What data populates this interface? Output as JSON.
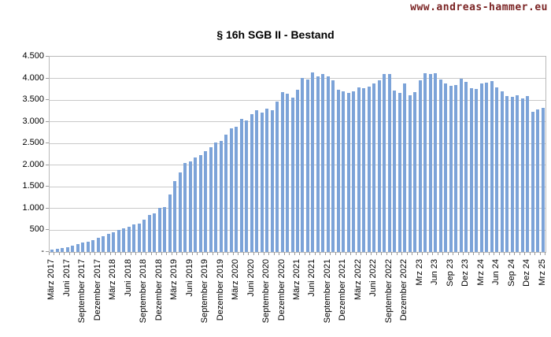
{
  "watermark": {
    "text": "www.andreas-hammer.eu",
    "color": "#7b2424"
  },
  "chart_data": {
    "type": "bar",
    "title": "§ 16h SGB II - Bestand",
    "xlabel": "",
    "ylabel": "",
    "ylim": [
      0,
      4500
    ],
    "y_step": 500,
    "grid": true,
    "legend": "none",
    "bar_color": "#7ca3d8",
    "gridline_color": "#c9c9c9",
    "y_tick_labels_top_to_bottom": [
      "4.500",
      "4.000",
      "3.500",
      "3.000",
      "2.500",
      "2.000",
      "1.500",
      "1.000",
      "500",
      "-"
    ],
    "x_tick_labels": [
      "März 2017",
      "Juni 2017",
      "September 2017",
      "Dezember 2017",
      "März 2018",
      "Juni 2018",
      "September 2018",
      "Dezember 2018",
      "März 2019",
      "Juni 2019",
      "September 2019",
      "Dezember 2019",
      "März 2020",
      "Juni 2020",
      "September 2020",
      "Dezember 2020",
      "März 2021",
      "Juni 2021",
      "September 2021",
      "Dezember 2021",
      "März 2022",
      "Juni 2022",
      "September 2022",
      "Dezember 2022",
      "Mrz 23",
      "Jun 23",
      "Sep 23",
      "Dez 23",
      "Mrz 24",
      "Jun 24",
      "Sep 24",
      "Dez 24",
      "Mrz 25"
    ],
    "bars_per_tick": 3,
    "n_bars": 97,
    "series_note": "monthly values März 2017 bis März 2025",
    "values": [
      60,
      80,
      95,
      110,
      140,
      175,
      210,
      240,
      280,
      330,
      370,
      415,
      460,
      505,
      550,
      590,
      630,
      660,
      740,
      860,
      890,
      1010,
      1040,
      1330,
      1640,
      1840,
      2050,
      2090,
      2180,
      2230,
      2320,
      2410,
      2530,
      2550,
      2700,
      2850,
      2880,
      3070,
      3030,
      3180,
      3270,
      3220,
      3300,
      3260,
      3470,
      3680,
      3650,
      3560,
      3730,
      4010,
      3980,
      4130,
      4040,
      4100,
      4040,
      3950,
      3740,
      3700,
      3670,
      3710,
      3800,
      3770,
      3810,
      3880,
      3950,
      4110,
      4100,
      3720,
      3660,
      3880,
      3620,
      3680,
      3950,
      4120,
      4100,
      4120,
      3980,
      3890,
      3820,
      3840,
      4000,
      3920,
      3770,
      3760,
      3880,
      3910,
      3940,
      3800,
      3710,
      3600,
      3575,
      3615,
      3545,
      3585,
      3230,
      3280,
      3320
    ]
  }
}
